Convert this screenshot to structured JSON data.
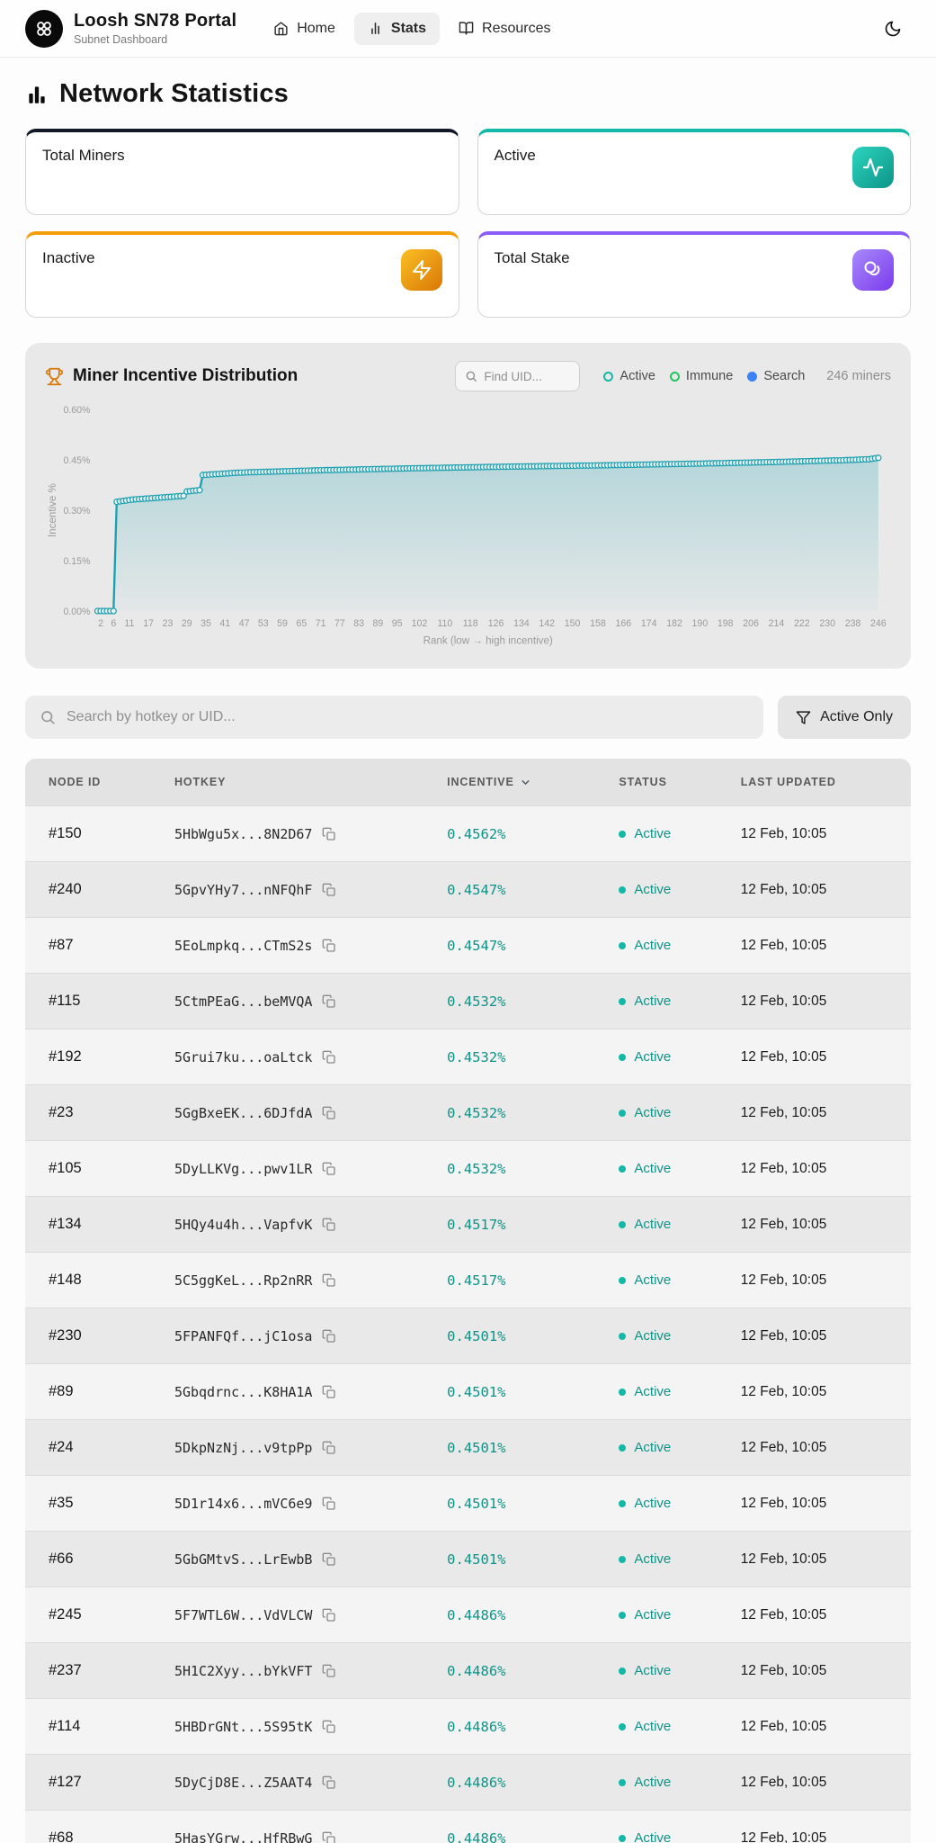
{
  "header": {
    "title": "Loosh SN78 Portal",
    "subtitle": "Subnet Dashboard",
    "nav": [
      {
        "label": "Home",
        "active": false
      },
      {
        "label": "Stats",
        "active": true
      },
      {
        "label": "Resources",
        "active": false
      }
    ]
  },
  "page": {
    "title": "Network Statistics"
  },
  "stat_cards": [
    {
      "label": "Total Miners",
      "accent": "#111827"
    },
    {
      "label": "Active",
      "accent": "#14b8a6",
      "icon": "activity-icon",
      "icon_bg": [
        "#2dd4bf",
        "#0d9488"
      ]
    },
    {
      "label": "Inactive",
      "accent": "#f59e0b",
      "icon": "zap-icon",
      "icon_bg": [
        "#fbbf24",
        "#d97706"
      ]
    },
    {
      "label": "Total Stake",
      "accent": "#8b5cf6",
      "icon": "stake-icon",
      "icon_bg": [
        "#a78bfa",
        "#7c3aed"
      ]
    }
  ],
  "chart_panel": {
    "title": "Miner Incentive Distribution",
    "find_placeholder": "Find UID...",
    "legend": [
      {
        "label": "Active",
        "color": "#14b8a6",
        "filled": false
      },
      {
        "label": "Immune",
        "color": "#22c55e",
        "filled": false
      },
      {
        "label": "Search",
        "color": "#3b82f6",
        "filled": true
      }
    ],
    "miners_count": "246 miners"
  },
  "chart_data": {
    "type": "line",
    "title": "Miner Incentive Distribution",
    "xlabel": "Rank (low → high incentive)",
    "ylabel": "Incentive %",
    "x_ticks": [
      2,
      6,
      11,
      17,
      23,
      29,
      35,
      41,
      47,
      53,
      59,
      65,
      71,
      77,
      83,
      89,
      95,
      102,
      110,
      118,
      126,
      134,
      142,
      150,
      158,
      166,
      174,
      182,
      190,
      198,
      206,
      214,
      222,
      230,
      238,
      246
    ],
    "y_ticks": [
      "0.00%",
      "0.15%",
      "0.30%",
      "0.45%",
      "0.60%"
    ],
    "xlim": [
      1,
      246
    ],
    "ylim": [
      0,
      0.6
    ],
    "n_points": 246,
    "line_color": "#1a9fae",
    "marker": "circle-open",
    "anchor_points": [
      [
        1,
        0
      ],
      [
        6,
        0
      ],
      [
        7,
        0.325
      ],
      [
        12,
        0.332
      ],
      [
        18,
        0.336
      ],
      [
        24,
        0.34
      ],
      [
        28,
        0.343
      ],
      [
        29,
        0.356
      ],
      [
        33,
        0.36
      ],
      [
        34,
        0.405
      ],
      [
        45,
        0.412
      ],
      [
        70,
        0.419
      ],
      [
        100,
        0.425
      ],
      [
        130,
        0.43
      ],
      [
        160,
        0.434
      ],
      [
        190,
        0.439
      ],
      [
        215,
        0.444
      ],
      [
        235,
        0.449
      ],
      [
        243,
        0.452
      ],
      [
        246,
        0.4562
      ]
    ]
  },
  "search": {
    "placeholder": "Search by hotkey or UID...",
    "filter_label": "Active Only"
  },
  "table": {
    "columns": [
      "Node ID",
      "Hotkey",
      "Incentive",
      "Status",
      "Last Updated"
    ],
    "status_color": "#0d9488",
    "rows": [
      {
        "node_id": "#150",
        "hotkey": "5HbWgu5x...8N2D67",
        "incentive": "0.4562%",
        "status": "Active",
        "last_updated": "12 Feb, 10:05"
      },
      {
        "node_id": "#240",
        "hotkey": "5GpvYHy7...nNFQhF",
        "incentive": "0.4547%",
        "status": "Active",
        "last_updated": "12 Feb, 10:05"
      },
      {
        "node_id": "#87",
        "hotkey": "5EoLmpkq...CTmS2s",
        "incentive": "0.4547%",
        "status": "Active",
        "last_updated": "12 Feb, 10:05"
      },
      {
        "node_id": "#115",
        "hotkey": "5CtmPEaG...beMVQA",
        "incentive": "0.4532%",
        "status": "Active",
        "last_updated": "12 Feb, 10:05"
      },
      {
        "node_id": "#192",
        "hotkey": "5Grui7ku...oaLtck",
        "incentive": "0.4532%",
        "status": "Active",
        "last_updated": "12 Feb, 10:05"
      },
      {
        "node_id": "#23",
        "hotkey": "5GgBxeEK...6DJfdA",
        "incentive": "0.4532%",
        "status": "Active",
        "last_updated": "12 Feb, 10:05"
      },
      {
        "node_id": "#105",
        "hotkey": "5DyLLKVg...pwv1LR",
        "incentive": "0.4532%",
        "status": "Active",
        "last_updated": "12 Feb, 10:05"
      },
      {
        "node_id": "#134",
        "hotkey": "5HQy4u4h...VapfvK",
        "incentive": "0.4517%",
        "status": "Active",
        "last_updated": "12 Feb, 10:05"
      },
      {
        "node_id": "#148",
        "hotkey": "5C5ggKeL...Rp2nRR",
        "incentive": "0.4517%",
        "status": "Active",
        "last_updated": "12 Feb, 10:05"
      },
      {
        "node_id": "#230",
        "hotkey": "5FPANFQf...jC1osa",
        "incentive": "0.4501%",
        "status": "Active",
        "last_updated": "12 Feb, 10:05"
      },
      {
        "node_id": "#89",
        "hotkey": "5Gbqdrnc...K8HA1A",
        "incentive": "0.4501%",
        "status": "Active",
        "last_updated": "12 Feb, 10:05"
      },
      {
        "node_id": "#24",
        "hotkey": "5DkpNzNj...v9tpPp",
        "incentive": "0.4501%",
        "status": "Active",
        "last_updated": "12 Feb, 10:05"
      },
      {
        "node_id": "#35",
        "hotkey": "5D1r14x6...mVC6e9",
        "incentive": "0.4501%",
        "status": "Active",
        "last_updated": "12 Feb, 10:05"
      },
      {
        "node_id": "#66",
        "hotkey": "5GbGMtvS...LrEwbB",
        "incentive": "0.4501%",
        "status": "Active",
        "last_updated": "12 Feb, 10:05"
      },
      {
        "node_id": "#245",
        "hotkey": "5F7WTL6W...VdVLCW",
        "incentive": "0.4486%",
        "status": "Active",
        "last_updated": "12 Feb, 10:05"
      },
      {
        "node_id": "#237",
        "hotkey": "5H1C2Xyy...bYkVFT",
        "incentive": "0.4486%",
        "status": "Active",
        "last_updated": "12 Feb, 10:05"
      },
      {
        "node_id": "#114",
        "hotkey": "5HBDrGNt...5S95tK",
        "incentive": "0.4486%",
        "status": "Active",
        "last_updated": "12 Feb, 10:05"
      },
      {
        "node_id": "#127",
        "hotkey": "5DyCjD8E...Z5AAT4",
        "incentive": "0.4486%",
        "status": "Active",
        "last_updated": "12 Feb, 10:05"
      },
      {
        "node_id": "#68",
        "hotkey": "5HasYGrw...HfRBwG",
        "incentive": "0.4486%",
        "status": "Active",
        "last_updated": "12 Feb, 10:05"
      }
    ]
  }
}
